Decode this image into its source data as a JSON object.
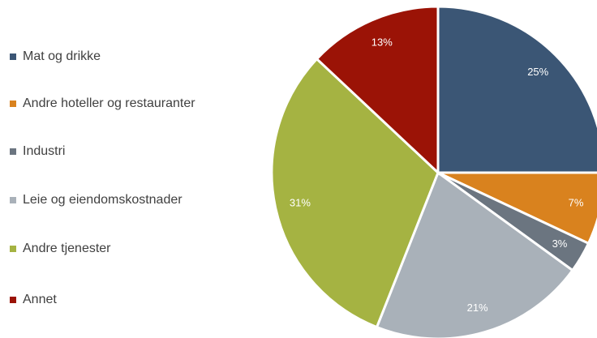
{
  "chart_data": {
    "type": "pie",
    "categories": [
      "Mat og drikke",
      "Andre hoteller og restauranter",
      "Industri",
      "Leie og eiendomskostnader",
      "Andre tjenester",
      "Annet"
    ],
    "values": [
      25,
      7,
      3,
      21,
      31,
      13
    ],
    "value_labels": [
      "25%",
      "7%",
      "3%",
      "21%",
      "31%",
      "13%"
    ],
    "colors": [
      "#3b5675",
      "#d9821e",
      "#6b7580",
      "#a9b1b9",
      "#a5b342",
      "#9b1306"
    ],
    "legend": "left"
  }
}
